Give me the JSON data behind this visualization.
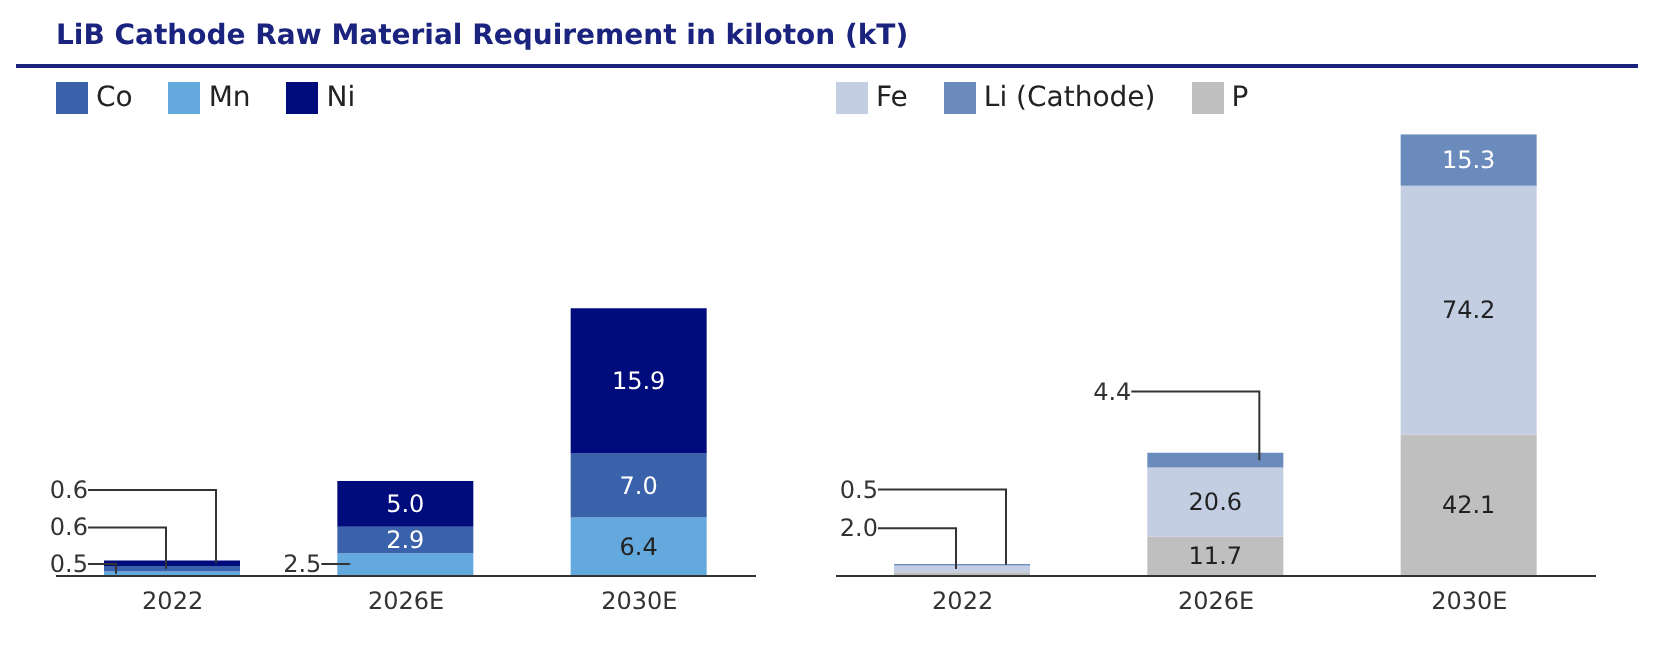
{
  "chart_data": [
    {
      "type": "bar",
      "title": "LiB Cathode Raw Material Requirement in kiloton (kT)",
      "stacked": true,
      "legend": "top left",
      "categories": [
        "2022",
        "2026E",
        "2030E"
      ],
      "series": [
        {
          "name": "Mn",
          "color": "#63a9dd",
          "values": [
            0.5,
            2.5,
            6.4
          ],
          "value_labels": [
            "0.5",
            "2.5",
            "6.4"
          ]
        },
        {
          "name": "Co",
          "color": "#3a62aa",
          "values": [
            0.6,
            2.9,
            7.0
          ],
          "value_labels": [
            "0.6",
            "2.9",
            "7.0"
          ]
        },
        {
          "name": "Ni",
          "color": "#000c7b",
          "values": [
            0.6,
            5.0,
            15.9
          ],
          "value_labels": [
            "0.6",
            "5.0",
            "15.9"
          ]
        }
      ]
    },
    {
      "type": "bar",
      "stacked": true,
      "legend": "top left",
      "categories": [
        "2022",
        "2026E",
        "2030E"
      ],
      "series": [
        {
          "name": "P",
          "color": "#bfbfbf",
          "values": [
            1.1,
            11.7,
            42.1
          ],
          "value_labels": [
            null,
            "11.7",
            "42.1"
          ]
        },
        {
          "name": "Fe",
          "color": "#c3cee2",
          "values": [
            2.0,
            20.6,
            74.2
          ],
          "value_labels": [
            "2.0",
            "20.6",
            "74.2"
          ]
        },
        {
          "name": "Li (Cathode)",
          "color": "#6a8bbb",
          "values": [
            0.5,
            4.4,
            15.3
          ],
          "value_labels": [
            "0.5",
            "4.4",
            "15.3"
          ]
        }
      ]
    }
  ]
}
